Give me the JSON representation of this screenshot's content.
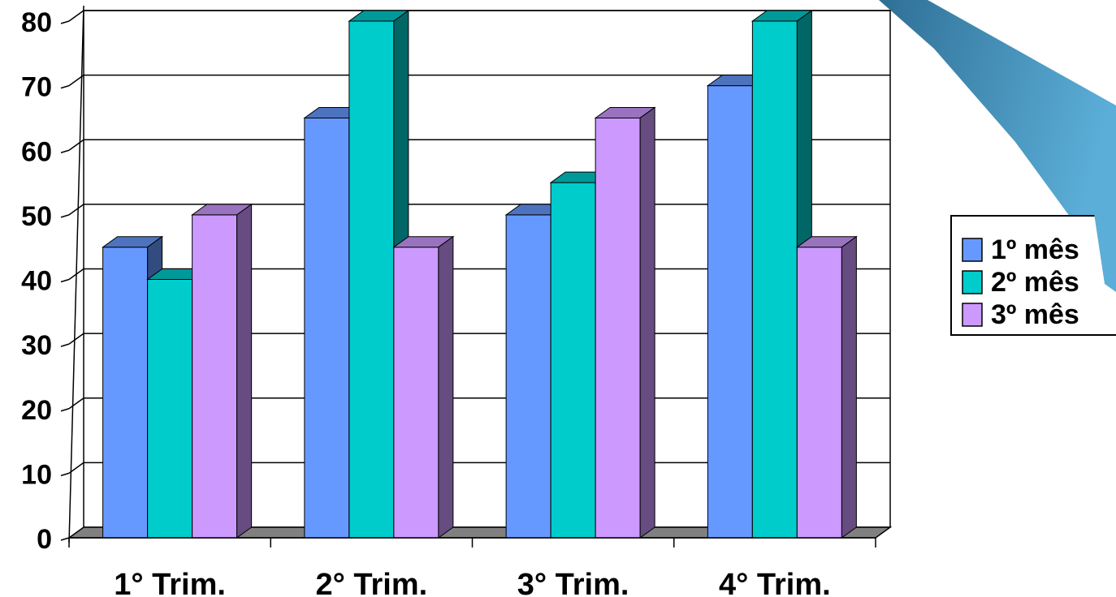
{
  "chart_data": {
    "type": "bar",
    "variant": "3d-clustered-column",
    "title": "",
    "xlabel": "",
    "ylabel": "",
    "categories": [
      "1° Trim.",
      "2° Trim.",
      "3° Trim.",
      "4° Trim."
    ],
    "series": [
      {
        "name": "1º mês",
        "values": [
          45,
          65,
          50,
          70
        ],
        "color": "#6699FF",
        "side": "#334C80",
        "top": "#4D73BF"
      },
      {
        "name": "2º mês",
        "values": [
          40,
          80,
          55,
          80
        ],
        "color": "#00CCCC",
        "side": "#006666",
        "top": "#009999"
      },
      {
        "name": "3º mês",
        "values": [
          50,
          45,
          65,
          45
        ],
        "color": "#CC99FF",
        "side": "#664C80",
        "top": "#9973BF"
      }
    ],
    "ylim": [
      0,
      80
    ],
    "yticks": [
      0,
      10,
      20,
      30,
      40,
      50,
      60,
      70,
      80
    ],
    "grid": true,
    "legend_position": "right"
  },
  "decoration": {
    "ribbon_colors": [
      "#2F6F95",
      "#5BAED8"
    ]
  }
}
